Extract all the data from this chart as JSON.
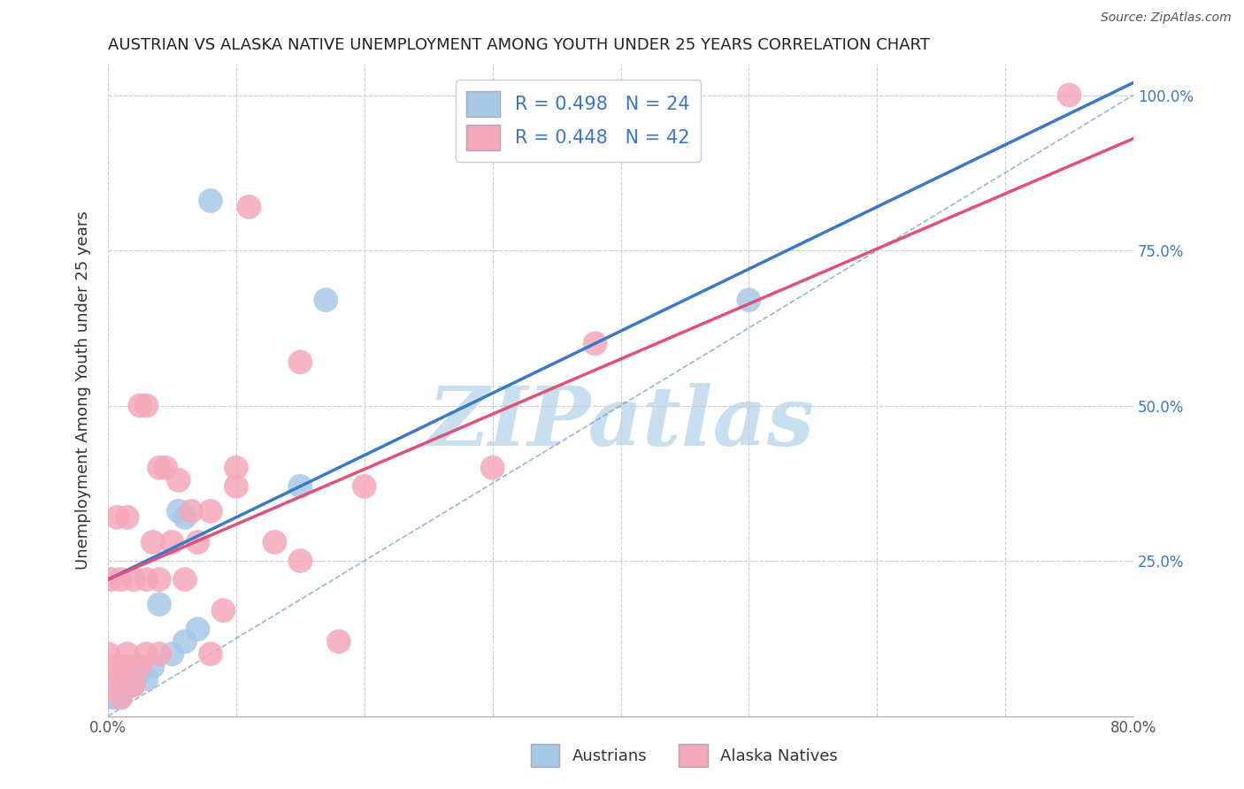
{
  "title": "AUSTRIAN VS ALASKA NATIVE UNEMPLOYMENT AMONG YOUTH UNDER 25 YEARS CORRELATION CHART",
  "source": "Source: ZipAtlas.com",
  "ylabel": "Unemployment Among Youth under 25 years",
  "xlim": [
    0.0,
    0.8
  ],
  "ylim": [
    0.0,
    1.05
  ],
  "austrians_color": "#a8c8e8",
  "alaska_color": "#f5a8ba",
  "austrians_line_color": "#3a78c9",
  "alaska_line_color": "#e0507a",
  "diagonal_line_color": "#6699cc",
  "grid_color": "#cccccc",
  "watermark_color": "#c8dff0",
  "legend_label_color": "#3a78c9",
  "legend_box_austrians_color": "#a8c8e8",
  "legend_box_alaska_color": "#f5a8ba",
  "austrians_R": 0.498,
  "austrians_N": 24,
  "alaska_R": 0.448,
  "alaska_N": 42,
  "austrians_line_x0": 0.0,
  "austrians_line_y0": 0.22,
  "austrians_line_x1": 0.8,
  "austrians_line_y1": 1.02,
  "alaska_line_x0": 0.0,
  "alaska_line_y0": 0.22,
  "alaska_line_x1": 0.8,
  "alaska_line_y1": 0.93,
  "austrians_scatter_x": [
    0.0,
    0.0,
    0.005,
    0.007,
    0.01,
    0.01,
    0.015,
    0.015,
    0.02,
    0.02,
    0.022,
    0.025,
    0.03,
    0.035,
    0.04,
    0.05,
    0.055,
    0.06,
    0.06,
    0.07,
    0.08,
    0.15,
    0.17,
    0.5
  ],
  "austrians_scatter_y": [
    0.03,
    0.05,
    0.03,
    0.04,
    0.03,
    0.05,
    0.05,
    0.08,
    0.05,
    0.07,
    0.08,
    0.07,
    0.06,
    0.08,
    0.18,
    0.1,
    0.33,
    0.12,
    0.32,
    0.14,
    0.83,
    0.37,
    0.67,
    0.67
  ],
  "alaska_scatter_x": [
    0.0,
    0.0,
    0.002,
    0.005,
    0.007,
    0.01,
    0.01,
    0.01,
    0.013,
    0.015,
    0.015,
    0.02,
    0.02,
    0.025,
    0.025,
    0.03,
    0.03,
    0.03,
    0.035,
    0.04,
    0.04,
    0.04,
    0.045,
    0.05,
    0.055,
    0.06,
    0.065,
    0.07,
    0.08,
    0.08,
    0.09,
    0.1,
    0.1,
    0.11,
    0.13,
    0.15,
    0.15,
    0.18,
    0.2,
    0.3,
    0.38,
    0.75
  ],
  "alaska_scatter_y": [
    0.05,
    0.1,
    0.22,
    0.08,
    0.32,
    0.03,
    0.07,
    0.22,
    0.08,
    0.1,
    0.32,
    0.05,
    0.22,
    0.08,
    0.5,
    0.1,
    0.22,
    0.5,
    0.28,
    0.1,
    0.22,
    0.4,
    0.4,
    0.28,
    0.38,
    0.22,
    0.33,
    0.28,
    0.1,
    0.33,
    0.17,
    0.4,
    0.37,
    0.82,
    0.28,
    0.25,
    0.57,
    0.12,
    0.37,
    0.4,
    0.6,
    1.0
  ]
}
